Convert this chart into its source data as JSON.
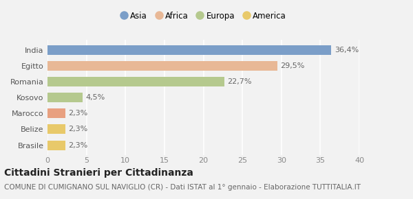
{
  "title": "Cittadini Stranieri per Cittadinanza",
  "subtitle": "COMUNE DI CUMIGNANO SUL NAVIGLIO (CR) - Dati ISTAT al 1° gennaio - Elaborazione TUTTITALIA.IT",
  "categories": [
    "Brasile",
    "Belize",
    "Marocco",
    "Kosovo",
    "Romania",
    "Egitto",
    "India"
  ],
  "values": [
    2.3,
    2.3,
    2.3,
    4.5,
    22.7,
    29.5,
    36.4
  ],
  "labels": [
    "2,3%",
    "2,3%",
    "2,3%",
    "4,5%",
    "22,7%",
    "29,5%",
    "36,4%"
  ],
  "colors": [
    "#e8c96a",
    "#e8c96a",
    "#e8a080",
    "#b5c98e",
    "#b5c98e",
    "#e8b896",
    "#7b9ec8"
  ],
  "legend_labels": [
    "Asia",
    "Africa",
    "Europa",
    "America"
  ],
  "legend_colors": [
    "#7b9ec8",
    "#e8b896",
    "#b5c98e",
    "#e8c96a"
  ],
  "xlim": [
    0,
    40
  ],
  "xticks": [
    0,
    5,
    10,
    15,
    20,
    25,
    30,
    35,
    40
  ],
  "background_color": "#f2f2f2",
  "bar_height": 0.6,
  "title_fontsize": 10,
  "subtitle_fontsize": 7.5,
  "label_fontsize": 8,
  "tick_fontsize": 8,
  "legend_fontsize": 8.5
}
